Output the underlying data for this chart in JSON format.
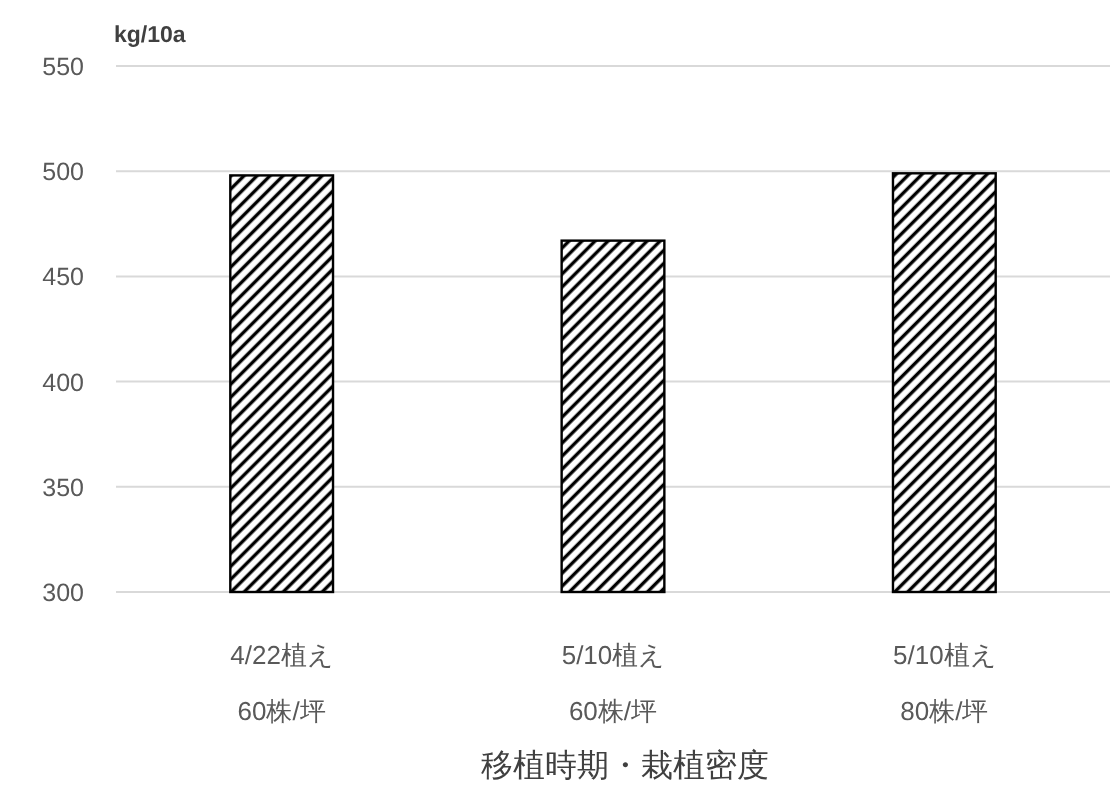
{
  "chart_data": {
    "type": "bar",
    "ylabel": "kg/10a",
    "xlabel": "移植時期・栽植密度",
    "categories": [
      "4/22植え\n60株/坪",
      "5/10植え\n60株/坪",
      "5/10植え\n80株/坪"
    ],
    "values": [
      498,
      467,
      499
    ],
    "color": "#000000",
    "ylim": [
      300,
      550
    ],
    "yticks": [
      300,
      350,
      400,
      450,
      500,
      550
    ],
    "grid": "y"
  }
}
